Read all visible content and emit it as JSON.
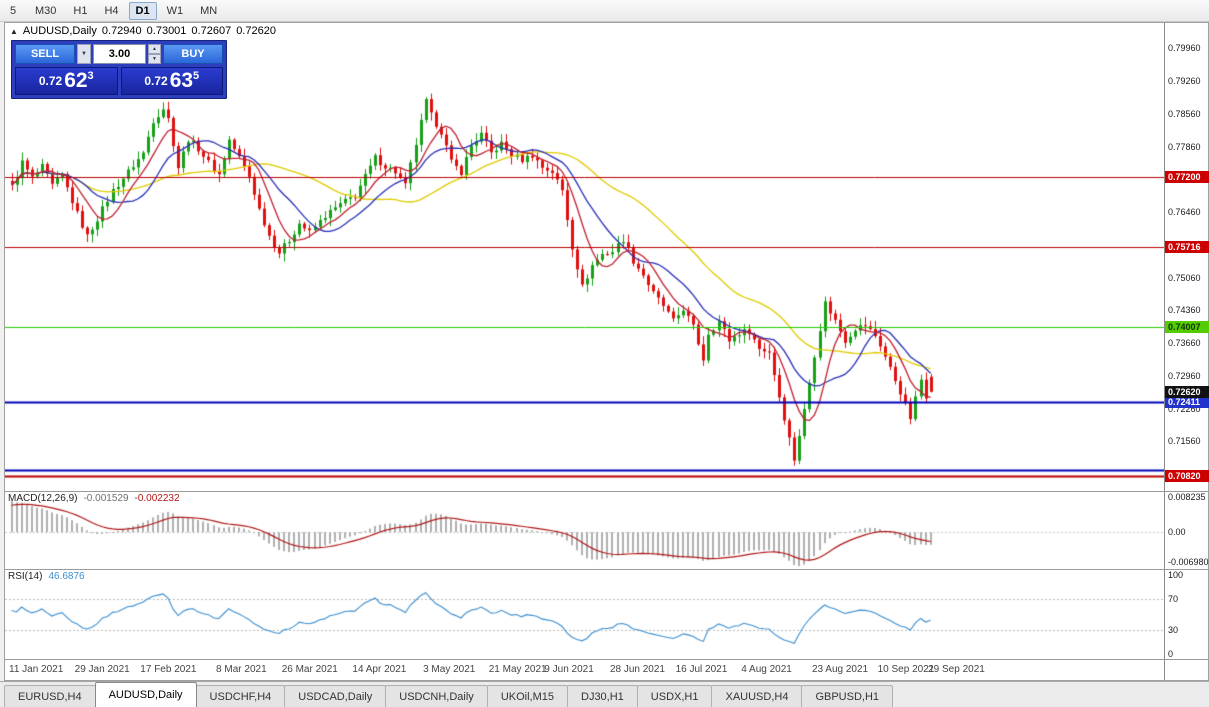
{
  "toolbar": {
    "timeframes": [
      {
        "label": "5",
        "active": false
      },
      {
        "label": "M30",
        "active": false
      },
      {
        "label": "H1",
        "active": false
      },
      {
        "label": "H4",
        "active": false
      },
      {
        "label": "D1",
        "active": true
      },
      {
        "label": "W1",
        "active": false
      },
      {
        "label": "MN",
        "active": false
      }
    ]
  },
  "chart_header": {
    "collapse_icon": "▲",
    "symbol": "AUDUSD,Daily",
    "open": "0.72940",
    "high": "0.73001",
    "low": "0.72607",
    "close": "0.72620"
  },
  "trade_panel": {
    "sell_label": "SELL",
    "buy_label": "BUY",
    "volume": "3.00",
    "dropdown_icon": "▼",
    "spin_up_icon": "▲",
    "spin_down_icon": "▼",
    "sell_price": {
      "prefix": "0.72",
      "big": "62",
      "sup": "3"
    },
    "buy_price": {
      "prefix": "0.72",
      "big": "63",
      "sup": "5"
    }
  },
  "chart_data": {
    "type": "candlestick",
    "symbol": "AUDUSD",
    "timeframe": "Daily",
    "bars": 183,
    "candle_up_color": "#18a018",
    "candle_down_color": "#e01010",
    "price_axis": {
      "min": 0.705,
      "max": 0.805,
      "ticks": [
        "0.79960",
        "0.79260",
        "0.78560",
        "0.77860",
        "0.77160",
        "0.76460",
        "0.75760",
        "0.75060",
        "0.74360",
        "0.73660",
        "0.72960",
        "0.72260",
        "0.71560",
        "0.70860"
      ]
    },
    "trend_anchors": [
      [
        0,
        0.77
      ],
      [
        2,
        0.7752
      ],
      [
        4,
        0.7718
      ],
      [
        6,
        0.7742
      ],
      [
        8,
        0.7702
      ],
      [
        10,
        0.7724
      ],
      [
        13,
        0.7642
      ],
      [
        15,
        0.7594
      ],
      [
        17,
        0.7632
      ],
      [
        20,
        0.7692
      ],
      [
        23,
        0.7732
      ],
      [
        26,
        0.7772
      ],
      [
        28,
        0.7842
      ],
      [
        30,
        0.7868
      ],
      [
        31,
        0.7845
      ],
      [
        33,
        0.7742
      ],
      [
        35,
        0.7802
      ],
      [
        37,
        0.7782
      ],
      [
        39,
        0.7752
      ],
      [
        41,
        0.7726
      ],
      [
        43,
        0.78
      ],
      [
        45,
        0.7762
      ],
      [
        47,
        0.7722
      ],
      [
        49,
        0.7652
      ],
      [
        51,
        0.7596
      ],
      [
        53,
        0.756
      ],
      [
        55,
        0.7586
      ],
      [
        57,
        0.7622
      ],
      [
        59,
        0.7602
      ],
      [
        62,
        0.7638
      ],
      [
        65,
        0.7662
      ],
      [
        68,
        0.7682
      ],
      [
        70,
        0.7722
      ],
      [
        72,
        0.7762
      ],
      [
        74,
        0.7744
      ],
      [
        76,
        0.7732
      ],
      [
        78,
        0.7702
      ],
      [
        80,
        0.7792
      ],
      [
        82,
        0.7882
      ],
      [
        83,
        0.7852
      ],
      [
        85,
        0.7818
      ],
      [
        87,
        0.7752
      ],
      [
        89,
        0.7732
      ],
      [
        91,
        0.7788
      ],
      [
        93,
        0.7812
      ],
      [
        95,
        0.7772
      ],
      [
        97,
        0.7792
      ],
      [
        99,
        0.7768
      ],
      [
        101,
        0.7758
      ],
      [
        103,
        0.7768
      ],
      [
        105,
        0.7742
      ],
      [
        107,
        0.7732
      ],
      [
        109,
        0.7692
      ],
      [
        111,
        0.7572
      ],
      [
        113,
        0.7486
      ],
      [
        115,
        0.7532
      ],
      [
        117,
        0.7556
      ],
      [
        119,
        0.7562
      ],
      [
        121,
        0.7588
      ],
      [
        123,
        0.7542
      ],
      [
        125,
        0.7512
      ],
      [
        127,
        0.7472
      ],
      [
        129,
        0.7446
      ],
      [
        131,
        0.7412
      ],
      [
        133,
        0.744
      ],
      [
        135,
        0.74
      ],
      [
        137,
        0.7332
      ],
      [
        138,
        0.7388
      ],
      [
        140,
        0.7412
      ],
      [
        142,
        0.7372
      ],
      [
        144,
        0.7388
      ],
      [
        146,
        0.7392
      ],
      [
        148,
        0.7354
      ],
      [
        150,
        0.7348
      ],
      [
        152,
        0.7252
      ],
      [
        154,
        0.7162
      ],
      [
        155,
        0.7118
      ],
      [
        157,
        0.7222
      ],
      [
        159,
        0.7342
      ],
      [
        161,
        0.7452
      ],
      [
        163,
        0.7414
      ],
      [
        165,
        0.7372
      ],
      [
        167,
        0.7398
      ],
      [
        169,
        0.7404
      ],
      [
        171,
        0.7382
      ],
      [
        172,
        0.7362
      ],
      [
        174,
        0.7312
      ],
      [
        176,
        0.7262
      ],
      [
        178,
        0.7206
      ],
      [
        180,
        0.7288
      ],
      [
        181,
        0.7254
      ],
      [
        182,
        0.7262
      ]
    ],
    "last_bar": {
      "open": 0.7294,
      "high": 0.73001,
      "low": 0.72607,
      "close": 0.7262
    },
    "moving_averages": [
      {
        "period": 7,
        "color": "#c02030"
      },
      {
        "period": 14,
        "color": "#2830b8"
      },
      {
        "period": 34,
        "color": "#e0cc00"
      }
    ],
    "hlines": [
      {
        "price": 0.772,
        "color": "#bb0000",
        "width": 1,
        "label": "0.77200",
        "label_bg": "#cc0000",
        "label_color": "#ffffff"
      },
      {
        "price": 0.75716,
        "color": "#bb0000",
        "width": 1,
        "label": "0.75716",
        "label_bg": "#cc0000",
        "label_color": "#ffffff"
      },
      {
        "price": 0.74007,
        "color": "#22cc00",
        "width": 1,
        "label": "0.74007",
        "label_bg": "#55cc00",
        "label_color": "#103300"
      },
      {
        "price": 0.72411,
        "color": "#0000bb",
        "width": 2,
        "label": "0.72411",
        "label_bg": "#2233cc",
        "label_color": "#ffffff"
      },
      {
        "price": 0.7095,
        "color": "#0000bb",
        "width": 2,
        "label": null
      },
      {
        "price": 0.7082,
        "color": "#bb0000",
        "width": 2,
        "label": "0.70820",
        "label_bg": "#cc0000",
        "label_color": "#ffffff"
      }
    ],
    "current_price": {
      "value": 0.7262,
      "label": "0.72620",
      "label_bg": "#111111",
      "label_color": "#ffffff"
    },
    "date_labels": [
      {
        "text": "11 Jan 2021",
        "bar": 0
      },
      {
        "text": "29 Jan 2021",
        "bar": 13
      },
      {
        "text": "17 Feb 2021",
        "bar": 26
      },
      {
        "text": "8 Mar 2021",
        "bar": 41
      },
      {
        "text": "26 Mar 2021",
        "bar": 54
      },
      {
        "text": "14 Apr 2021",
        "bar": 68
      },
      {
        "text": "3 May 2021",
        "bar": 82
      },
      {
        "text": "21 May 2021",
        "bar": 95
      },
      {
        "text": "9 Jun 2021",
        "bar": 106
      },
      {
        "text": "28 Jun 2021",
        "bar": 119
      },
      {
        "text": "16 Jul 2021",
        "bar": 132
      },
      {
        "text": "4 Aug 2021",
        "bar": 145
      },
      {
        "text": "23 Aug 2021",
        "bar": 159
      },
      {
        "text": "10 Sep 2021",
        "bar": 172
      },
      {
        "text": "29 Sep 2021",
        "bar": 182
      }
    ]
  },
  "indicators": {
    "macd": {
      "title": "MACD(12,26,9)",
      "value_main": "-0.001529",
      "value_signal": "-0.002232",
      "axis": [
        {
          "text": "0.008235",
          "v": 0.008235
        },
        {
          "text": "0.00",
          "v": 0
        },
        {
          "text": "-0.006980",
          "v": -0.00698
        }
      ],
      "range": {
        "max": 0.0094,
        "min": -0.0086
      },
      "hist_color": "#b0b0b0",
      "signal_color": "#b01818",
      "init_offset": 0.008
    },
    "rsi": {
      "title": "RSI(14)",
      "value": "46.6876",
      "axis": [
        {
          "text": "100",
          "v": 100
        },
        {
          "text": "70",
          "v": 70
        },
        {
          "text": "30",
          "v": 30
        },
        {
          "text": "0",
          "v": 0
        }
      ],
      "levels": [
        70,
        30
      ],
      "line_color": "#3c8fd0"
    }
  },
  "tabs": [
    {
      "label": "EURUSD,H4",
      "active": false
    },
    {
      "label": "AUDUSD,Daily",
      "active": true
    },
    {
      "label": "USDCHF,H4",
      "active": false
    },
    {
      "label": "USDCAD,Daily",
      "active": false
    },
    {
      "label": "USDCNH,Daily",
      "active": false
    },
    {
      "label": "UKOil,M15",
      "active": false
    },
    {
      "label": "DJ30,H1",
      "active": false
    },
    {
      "label": "USDX,H1",
      "active": false
    },
    {
      "label": "XAUUSD,H4",
      "active": false
    },
    {
      "label": "GBPUSD,H1",
      "active": false
    }
  ]
}
